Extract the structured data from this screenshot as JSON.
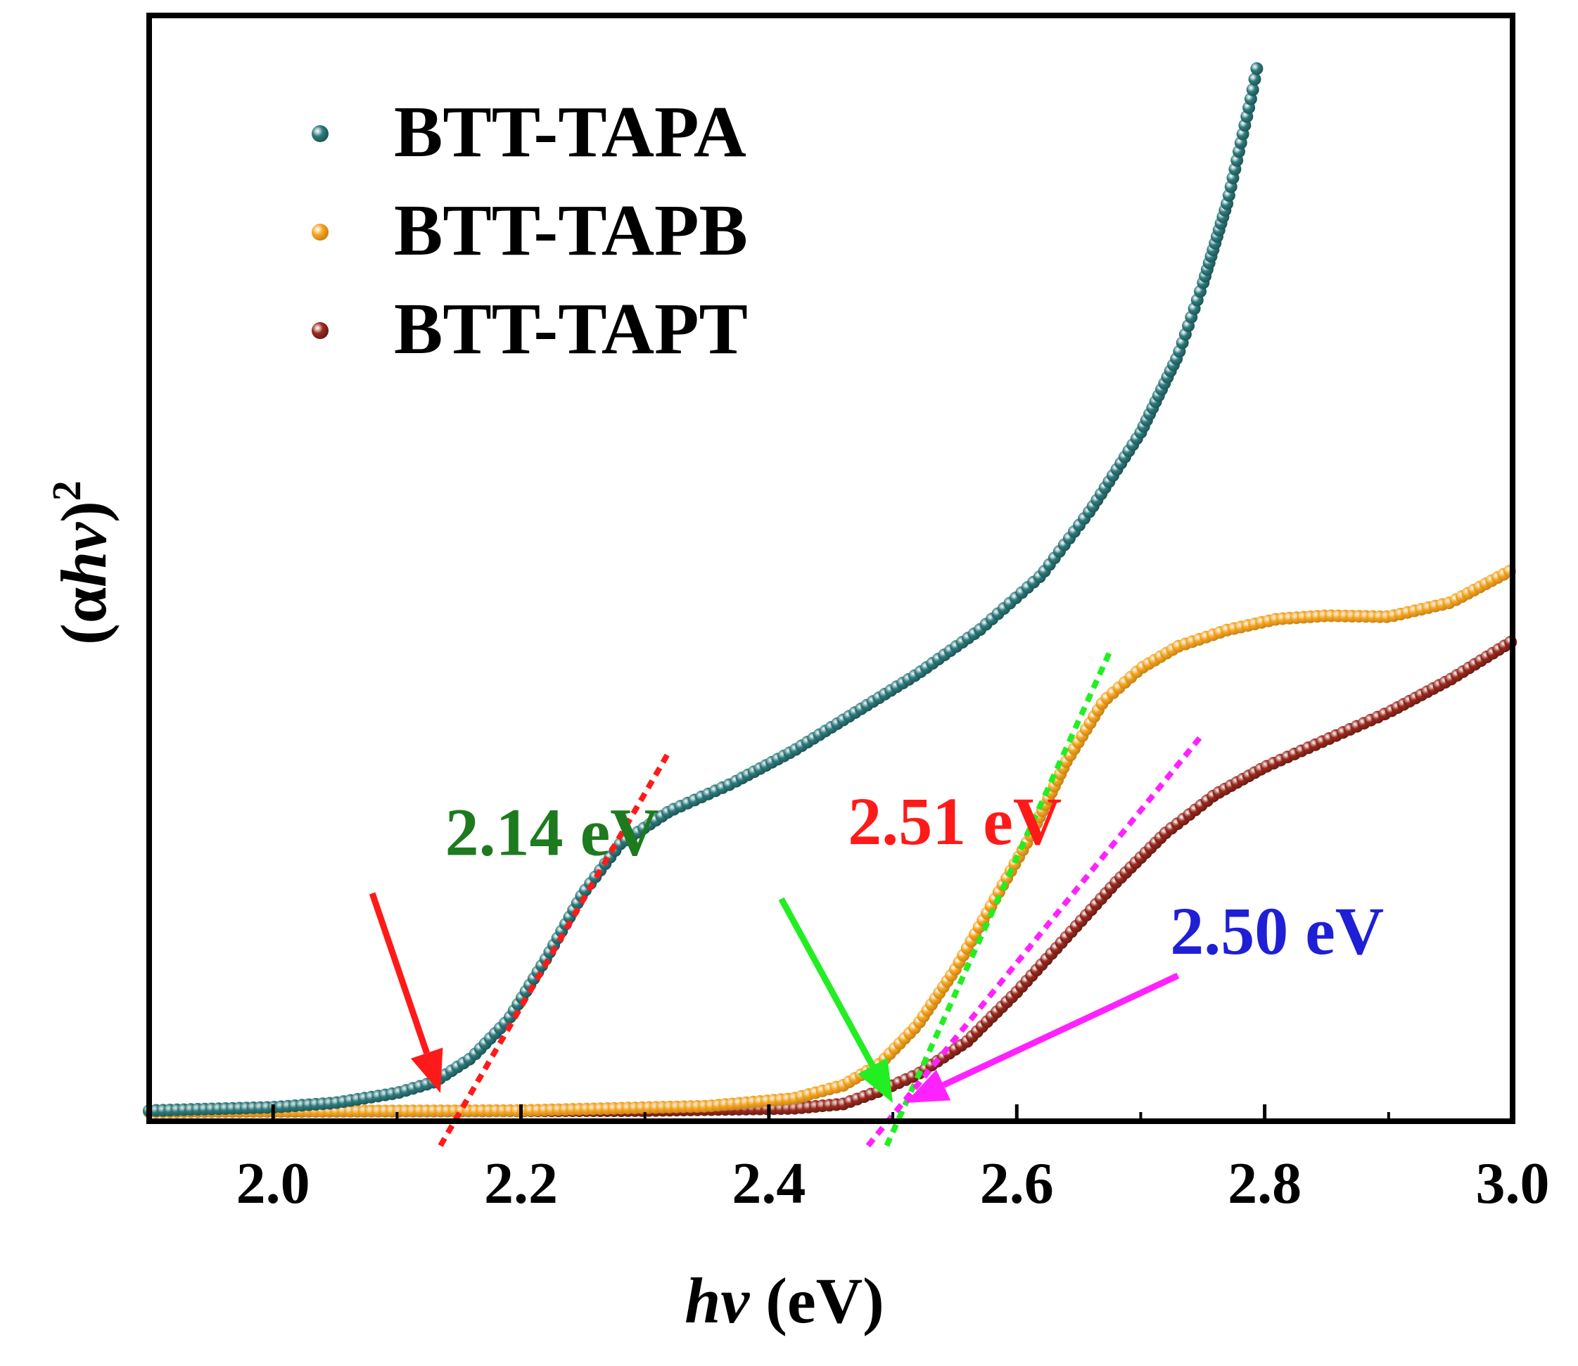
{
  "chart_data": {
    "type": "scatter",
    "title": "",
    "xlabel_italic": "hv",
    "xlabel_unit": "(eV)",
    "ylabel_open": "(α",
    "ylabel_italic": "hv",
    "ylabel_close": ")",
    "ylabel_power": "2",
    "xlim": [
      1.9,
      3.0
    ],
    "ylim": [
      0,
      100
    ],
    "x_ticks": [
      "2.0",
      "2.2",
      "2.4",
      "2.6",
      "2.8",
      "3.0"
    ],
    "legend_position": "top-left",
    "series": [
      {
        "name": "BTT-TAPA",
        "color": "#2e7b7d",
        "points": [
          [
            1.9,
            0.2
          ],
          [
            2.0,
            0.5
          ],
          [
            2.05,
            0.9
          ],
          [
            2.1,
            1.8
          ],
          [
            2.13,
            2.8
          ],
          [
            2.16,
            5.0
          ],
          [
            2.19,
            8.5
          ],
          [
            2.22,
            14.0
          ],
          [
            2.25,
            20.0
          ],
          [
            2.28,
            24.5
          ],
          [
            2.32,
            27.5
          ],
          [
            2.37,
            30.0
          ],
          [
            2.42,
            33.0
          ],
          [
            2.47,
            36.5
          ],
          [
            2.52,
            40.0
          ],
          [
            2.57,
            44.0
          ],
          [
            2.62,
            49.0
          ],
          [
            2.66,
            55.0
          ],
          [
            2.7,
            62.0
          ],
          [
            2.73,
            69.0
          ],
          [
            2.75,
            75.5
          ],
          [
            2.77,
            83.0
          ],
          [
            2.78,
            88.0
          ],
          [
            2.79,
            93.0
          ],
          [
            2.795,
            96.0
          ]
        ]
      },
      {
        "name": "BTT-TAPB",
        "color": "#f5a623",
        "points": [
          [
            1.9,
            0.1
          ],
          [
            2.2,
            0.2
          ],
          [
            2.35,
            0.6
          ],
          [
            2.42,
            1.3
          ],
          [
            2.46,
            2.5
          ],
          [
            2.49,
            4.5
          ],
          [
            2.52,
            8.0
          ],
          [
            2.55,
            13.0
          ],
          [
            2.58,
            19.0
          ],
          [
            2.61,
            25.0
          ],
          [
            2.64,
            32.0
          ],
          [
            2.67,
            37.5
          ],
          [
            2.7,
            40.5
          ],
          [
            2.73,
            42.5
          ],
          [
            2.77,
            44.0
          ],
          [
            2.81,
            45.0
          ],
          [
            2.85,
            45.3
          ],
          [
            2.9,
            45.2
          ],
          [
            2.95,
            46.5
          ],
          [
            3.0,
            49.5
          ]
        ]
      },
      {
        "name": "BTT-TAPT",
        "color": "#9b2a1f",
        "points": [
          [
            1.9,
            0.1
          ],
          [
            2.3,
            0.2
          ],
          [
            2.42,
            0.4
          ],
          [
            2.46,
            0.8
          ],
          [
            2.49,
            2.0
          ],
          [
            2.52,
            3.5
          ],
          [
            2.56,
            6.5
          ],
          [
            2.6,
            11.0
          ],
          [
            2.64,
            16.0
          ],
          [
            2.68,
            21.0
          ],
          [
            2.72,
            25.5
          ],
          [
            2.76,
            29.0
          ],
          [
            2.8,
            31.5
          ],
          [
            2.85,
            34.0
          ],
          [
            2.9,
            36.5
          ],
          [
            2.95,
            39.5
          ],
          [
            3.0,
            43.0
          ]
        ]
      }
    ],
    "fit_lines": [
      {
        "name": "fit-tapa",
        "color": "#ff1a1a",
        "from": [
          2.135,
          -3.0
        ],
        "to": [
          2.32,
          33.0
        ]
      },
      {
        "name": "fit-tapb",
        "color": "#22ee22",
        "from": [
          2.495,
          -3.0
        ],
        "to": [
          2.675,
          42.0
        ]
      },
      {
        "name": "fit-tapt",
        "color": "#ff22ff",
        "from": [
          2.48,
          -3.0
        ],
        "to": [
          2.75,
          34.5
        ]
      }
    ],
    "annotations": [
      {
        "name": "annotation-tapa",
        "text": "2.14 eV",
        "color": "#1e7a1e",
        "label_at": [
          2.225,
          23.5
        ],
        "arrow_color": "#ff1a1a",
        "arrow_from": [
          2.08,
          20.0
        ],
        "arrow_to": [
          2.135,
          1.8
        ]
      },
      {
        "name": "annotation-tapb",
        "text": "2.51 eV",
        "color": "#ff1a1a",
        "label_at": [
          2.55,
          24.5
        ],
        "arrow_color": "#22ee22",
        "arrow_from": [
          2.41,
          19.5
        ],
        "arrow_to": [
          2.5,
          0.9
        ]
      },
      {
        "name": "annotation-tapt",
        "text": "2.50 eV",
        "color": "#1f1fd6",
        "label_at": [
          2.81,
          14.5
        ],
        "arrow_color": "#ff22ff",
        "arrow_from": [
          2.73,
          12.5
        ],
        "arrow_to": [
          2.51,
          0.9
        ]
      }
    ]
  }
}
